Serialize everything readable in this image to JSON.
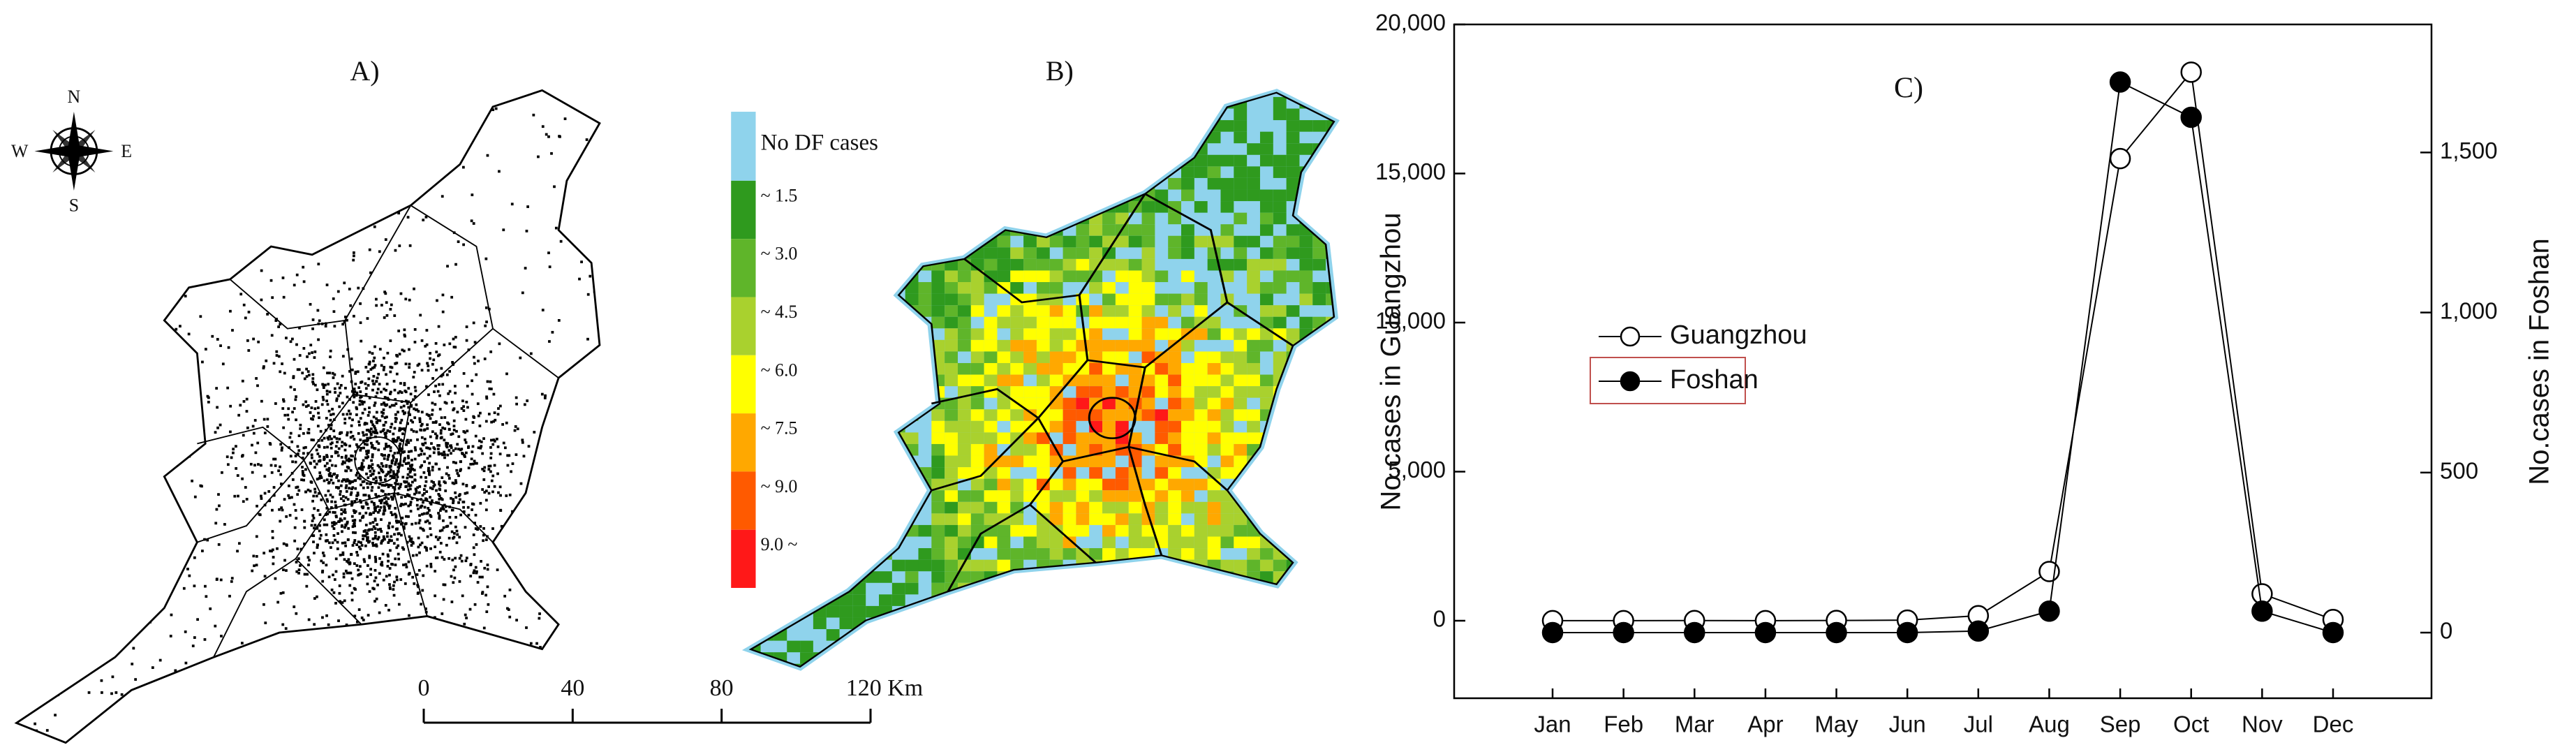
{
  "chart_data": {
    "type": "line",
    "panel_label": "C)",
    "categories": [
      "Jan",
      "Feb",
      "Mar",
      "Apr",
      "May",
      "Jun",
      "Jul",
      "Aug",
      "Sep",
      "Oct",
      "Nov",
      "Dec"
    ],
    "series": [
      {
        "name": "Guangzhou",
        "color": "#000000",
        "marker": "open",
        "values": [
          3,
          2,
          5,
          3,
          8,
          20,
          170,
          1650,
          15500,
          18400,
          900,
          40
        ]
      },
      {
        "name": "Foshan",
        "color": "#000000",
        "marker": "filled",
        "axis": "y2",
        "values": [
          0,
          0,
          0,
          0,
          0,
          0,
          5,
          67,
          1720,
          1610,
          67,
          0
        ]
      }
    ],
    "ylabel": "No.cases in Guangzhou",
    "y2label": "No.cases in Foshan",
    "ylim": [
      -2600,
      20000
    ],
    "yticks": [
      0,
      {
        "value": 5000,
        "label": "5,000"
      },
      {
        "value": 10000,
        "label": "10,000"
      },
      {
        "value": 15000,
        "label": "15,000"
      },
      {
        "value": 20000,
        "label": "20,000"
      }
    ],
    "y2lim": [
      -205,
      1900
    ],
    "y2ticks": [
      0,
      500,
      {
        "value": 1000,
        "label": "1,000"
      },
      {
        "value": 1500,
        "label": "1,500"
      }
    ],
    "grid": false
  },
  "map_a": {
    "label": "A)",
    "compass": [
      "N",
      "E",
      "S",
      "W"
    ]
  },
  "map_b": {
    "label": "B)",
    "legend": [
      {
        "label": "No DF cases",
        "color": "#8fd3ec"
      },
      {
        "label": "~ 1.5",
        "color": "#2f9a1e"
      },
      {
        "label": "~ 3.0",
        "color": "#5fb52a"
      },
      {
        "label": "~ 4.5",
        "color": "#a9d12e"
      },
      {
        "label": "~ 6.0",
        "color": "#ffff00"
      },
      {
        "label": "~ 7.5",
        "color": "#ffa800"
      },
      {
        "label": "~ 9.0",
        "color": "#ff5a00"
      },
      {
        "label": "9.0 ~",
        "color": "#ff1818"
      }
    ]
  },
  "scale_bar": {
    "xlim": [
      0,
      120
    ],
    "xticks": [
      0,
      40,
      80,
      {
        "value": 120,
        "label": "120 Km"
      }
    ]
  }
}
